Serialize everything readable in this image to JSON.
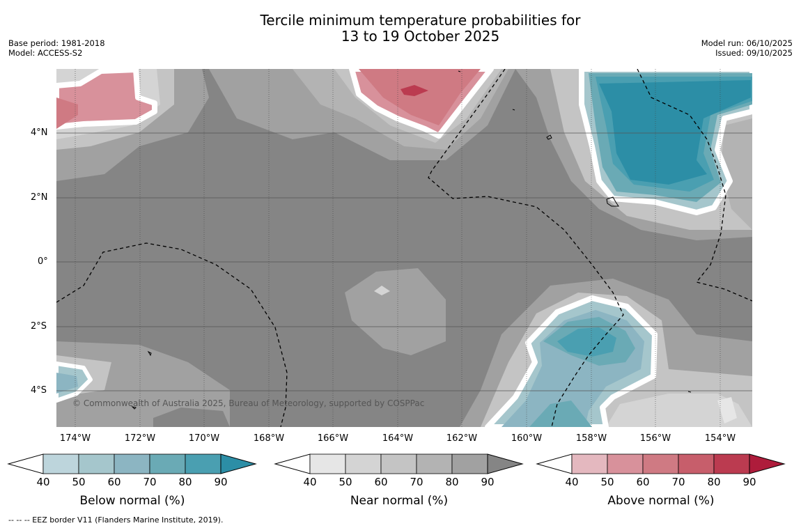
{
  "title": {
    "line1": "Tercile minimum temperature probabilities for",
    "line2": "13 to 19 October 2025"
  },
  "meta_left": {
    "base_period": "Base period: 1981-2018",
    "model": "Model: ACCESS-S2"
  },
  "meta_right": {
    "model_run": "Model run: 06/10/2025",
    "issued": "Issued: 09/10/2025"
  },
  "map": {
    "y_ticks": [
      "4°N",
      "2°N",
      "0°",
      "2°S",
      "4°S"
    ],
    "x_ticks": [
      "174°W",
      "172°W",
      "170°W",
      "168°W",
      "166°W",
      "164°W",
      "162°W",
      "160°W",
      "158°W",
      "156°W",
      "154°W"
    ],
    "copyright": "© Commonwealth of Australia 2025, Bureau of Meteorology, supported by COSPPac",
    "background_color": "#858585"
  },
  "colorbars": [
    {
      "name": "below",
      "label": "Below normal (%)",
      "ticks": [
        "40",
        "50",
        "60",
        "70",
        "80",
        "90"
      ],
      "colors": [
        "#bdd5dc",
        "#a5c6cc",
        "#8cb5c2",
        "#6aaab5",
        "#4a9fb1",
        "#2c8ea6"
      ]
    },
    {
      "name": "near",
      "label": "Near normal (%)",
      "ticks": [
        "40",
        "50",
        "60",
        "70",
        "80",
        "90"
      ],
      "colors": [
        "#e6e6e6",
        "#d4d4d4",
        "#c4c4c4",
        "#b3b3b3",
        "#a1a1a1",
        "#858585"
      ]
    },
    {
      "name": "above",
      "label": "Above normal (%)",
      "ticks": [
        "40",
        "50",
        "60",
        "70",
        "80",
        "90"
      ],
      "colors": [
        "#e4b8bf",
        "#d8919b",
        "#cf7a83",
        "#c75e6b",
        "#bb3b50",
        "#ae1c3b"
      ]
    }
  ],
  "footnote": "--  --  -- EEZ border V11 (Flanders Marine Institute, 2019)."
}
